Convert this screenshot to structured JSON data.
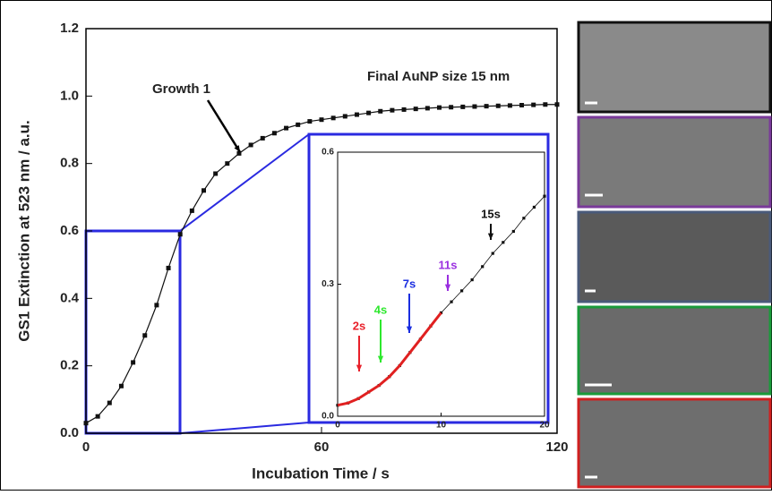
{
  "chart_data": [
    {
      "type": "line",
      "xlabel": "Incubation Time / s",
      "ylabel": "GS1 Extinction at 523 nm / a.u.",
      "annotations": [
        "Growth 1",
        "Final AuNP size 15 nm"
      ],
      "x": [
        0,
        3,
        6,
        9,
        12,
        15,
        18,
        21,
        24,
        27,
        30,
        33,
        36,
        39,
        42,
        45,
        48,
        51,
        54,
        57,
        60,
        63,
        66,
        69,
        72,
        75,
        78,
        81,
        84,
        87,
        90,
        93,
        96,
        99,
        102,
        105,
        108,
        111,
        114,
        117,
        120
      ],
      "series": [
        {
          "color": "#111111",
          "values": [
            0.03,
            0.05,
            0.09,
            0.14,
            0.21,
            0.29,
            0.38,
            0.49,
            0.59,
            0.66,
            0.72,
            0.77,
            0.8,
            0.83,
            0.855,
            0.875,
            0.89,
            0.905,
            0.915,
            0.925,
            0.93,
            0.935,
            0.94,
            0.945,
            0.95,
            0.955,
            0.958,
            0.96,
            0.962,
            0.964,
            0.966,
            0.967,
            0.968,
            0.969,
            0.97,
            0.971,
            0.972,
            0.973,
            0.974,
            0.975,
            0.975
          ]
        }
      ],
      "xlim": [
        0,
        120
      ],
      "xticks": [
        0,
        60,
        120
      ],
      "ylim": [
        0,
        1.2
      ],
      "yticks": [
        {
          "value": 0,
          "label": "0.0"
        },
        0.2,
        0.4,
        0.6,
        0.8,
        {
          "value": 1,
          "label": "1.0"
        },
        1.2
      ],
      "grid": false
    },
    {
      "type": "line",
      "annotations": [
        "2s",
        "4s",
        "7s",
        "11s",
        "15s"
      ],
      "annotation_colors": [
        "#e8202a",
        "#2ee82e",
        "#1a2ee0",
        "#9a2ee0",
        "#111111"
      ],
      "x": [
        0,
        1,
        2,
        3,
        4,
        5,
        6,
        7,
        8,
        9,
        10,
        11,
        12,
        13,
        14,
        15,
        16,
        17,
        18,
        19,
        20
      ],
      "series": [
        {
          "color": "#111111",
          "values": [
            0.025,
            0.03,
            0.04,
            0.055,
            0.07,
            0.09,
            0.115,
            0.145,
            0.175,
            0.205,
            0.235,
            0.26,
            0.285,
            0.31,
            0.34,
            0.37,
            0.395,
            0.42,
            0.45,
            0.475,
            0.5
          ]
        },
        {
          "color": "#e02020",
          "values": [
            0.025,
            0.03,
            0.04,
            0.055,
            0.07,
            0.09,
            0.115,
            0.145,
            0.175,
            0.205,
            0.235,
            null,
            null,
            null,
            null,
            null,
            null,
            null,
            null,
            null,
            null
          ]
        }
      ],
      "xlim": [
        0,
        20
      ],
      "xticks": [
        0,
        10,
        20
      ],
      "ylim": [
        0,
        0.6
      ],
      "yticks": [
        {
          "value": 0,
          "label": "0.0"
        },
        0.3,
        0.6
      ],
      "grid": false
    }
  ]
}
